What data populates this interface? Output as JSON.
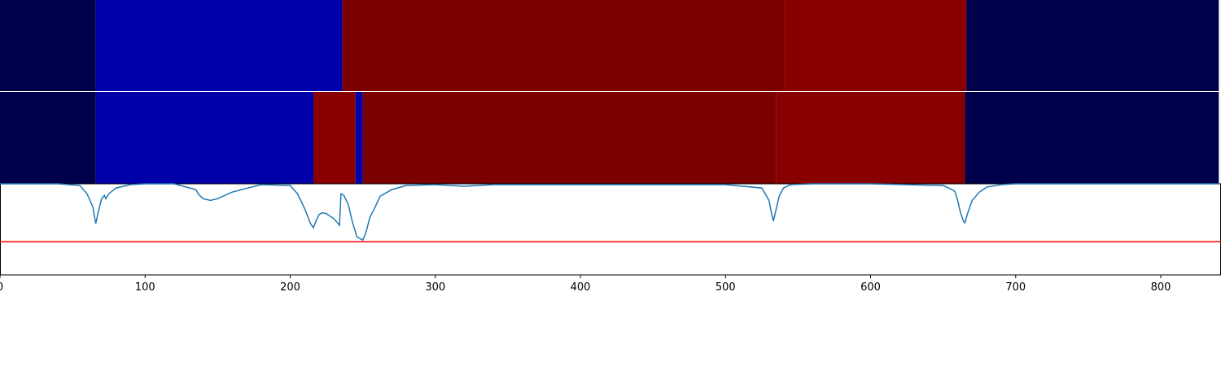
{
  "chart_data": [
    {
      "type": "heatmap",
      "x_range": [
        0,
        840
      ],
      "segments": [
        {
          "start": 0,
          "end": 66,
          "color": "#00004a"
        },
        {
          "start": 66,
          "end": 236,
          "color": "#0000aa"
        },
        {
          "start": 236,
          "end": 541,
          "color": "#7c0000"
        },
        {
          "start": 541,
          "end": 666,
          "color": "#880000"
        },
        {
          "start": 666,
          "end": 840,
          "color": "#00004a"
        }
      ]
    },
    {
      "type": "heatmap",
      "x_range": [
        0,
        840
      ],
      "segments": [
        {
          "start": 0,
          "end": 66,
          "color": "#00004a"
        },
        {
          "start": 66,
          "end": 216,
          "color": "#0000aa"
        },
        {
          "start": 216,
          "end": 245,
          "color": "#880000"
        },
        {
          "start": 245,
          "end": 250,
          "color": "#0000aa"
        },
        {
          "start": 250,
          "end": 535,
          "color": "#7c0000"
        },
        {
          "start": 535,
          "end": 665,
          "color": "#880000"
        },
        {
          "start": 665,
          "end": 840,
          "color": "#00004a"
        }
      ]
    },
    {
      "type": "line",
      "xlim": [
        0,
        840
      ],
      "ylim": [
        -1.1,
        0
      ],
      "threshold": -0.7,
      "threshold_color": "#ff0000",
      "line_color": "#1f77b4",
      "xticks": [
        "0",
        "100",
        "200",
        "300",
        "400",
        "500",
        "600",
        "700",
        "800"
      ],
      "x": [
        0,
        40,
        55,
        60,
        64,
        66,
        68,
        70,
        72,
        73,
        75,
        80,
        90,
        100,
        120,
        135,
        137,
        140,
        145,
        150,
        160,
        180,
        200,
        205,
        210,
        214,
        216,
        218,
        220,
        222,
        225,
        230,
        234,
        235,
        237,
        240,
        243,
        246,
        249,
        250,
        252,
        255,
        258,
        262,
        266,
        270,
        280,
        300,
        320,
        340,
        400,
        500,
        525,
        530,
        532,
        533,
        535,
        537,
        540,
        545,
        560,
        600,
        650,
        655,
        658,
        660,
        662,
        664,
        665,
        667,
        670,
        675,
        680,
        690,
        700,
        840
      ],
      "y": [
        0,
        0,
        -0.02,
        -0.12,
        -0.28,
        -0.48,
        -0.32,
        -0.18,
        -0.14,
        -0.18,
        -0.12,
        -0.05,
        -0.01,
        0,
        0,
        -0.07,
        -0.13,
        -0.18,
        -0.2,
        -0.18,
        -0.1,
        -0.01,
        -0.02,
        -0.12,
        -0.3,
        -0.48,
        -0.53,
        -0.44,
        -0.37,
        -0.35,
        -0.36,
        -0.42,
        -0.5,
        -0.12,
        -0.14,
        -0.25,
        -0.47,
        -0.64,
        -0.67,
        -0.68,
        -0.6,
        -0.4,
        -0.3,
        -0.15,
        -0.11,
        -0.07,
        -0.02,
        -0.01,
        -0.03,
        -0.01,
        -0.01,
        -0.01,
        -0.05,
        -0.2,
        -0.38,
        -0.45,
        -0.3,
        -0.15,
        -0.05,
        -0.01,
        0,
        0,
        -0.02,
        -0.06,
        -0.09,
        -0.2,
        -0.35,
        -0.45,
        -0.47,
        -0.35,
        -0.2,
        -0.1,
        -0.04,
        -0.01,
        0,
        0
      ]
    }
  ]
}
